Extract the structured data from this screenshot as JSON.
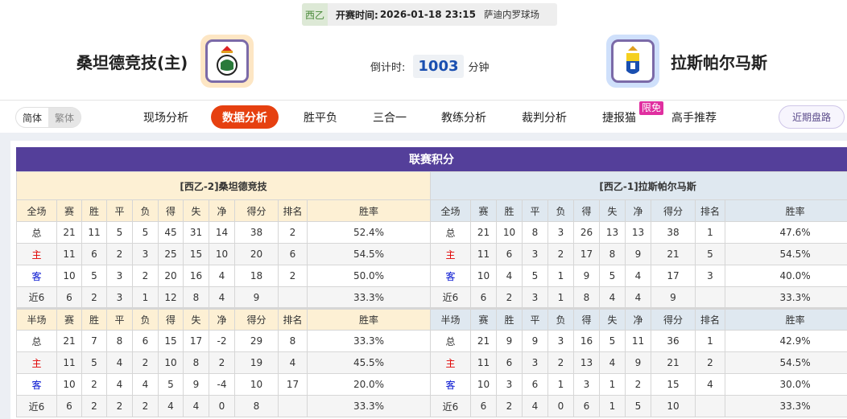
{
  "match": {
    "league": "西乙",
    "kickoff_label": "开赛时间:",
    "kickoff": "2026-01-18 23:15",
    "venue": "萨迪内罗球场"
  },
  "home_team": {
    "name": "桑坦德竞技(主)",
    "logo": "racing-santander-crest"
  },
  "away_team": {
    "name": "拉斯帕尔马斯",
    "logo": "las-palmas-crest"
  },
  "countdown": {
    "label": "倒计时:",
    "value": "1003",
    "unit": "分钟"
  },
  "lang": {
    "simplified": "简体",
    "traditional": "繁体"
  },
  "nav": {
    "tabs": [
      "现场分析",
      "数据分析",
      "胜平负",
      "三合一",
      "教练分析",
      "裁判分析",
      "捷报猫",
      "高手推荐"
    ],
    "active": "数据分析",
    "badge": "限免",
    "recent": "近期盘路"
  },
  "colors": {
    "accent": "#e64010",
    "title_bar": "#543f9a",
    "home_label": "#e00000",
    "away_label": "#0010d0"
  },
  "standings": {
    "title": "联赛积分",
    "home": {
      "team": "[西乙-2]桑坦德竞技",
      "full": {
        "header": [
          "全场",
          "赛",
          "胜",
          "平",
          "负",
          "得",
          "失",
          "净",
          "得分",
          "排名",
          "胜率"
        ],
        "rows": [
          [
            "总",
            "21",
            "11",
            "5",
            "5",
            "45",
            "31",
            "14",
            "38",
            "2",
            "52.4%"
          ],
          [
            "主",
            "11",
            "6",
            "2",
            "3",
            "25",
            "15",
            "10",
            "20",
            "6",
            "54.5%"
          ],
          [
            "客",
            "10",
            "5",
            "3",
            "2",
            "20",
            "16",
            "4",
            "18",
            "2",
            "50.0%"
          ],
          [
            "近6",
            "6",
            "2",
            "3",
            "1",
            "12",
            "8",
            "4",
            "9",
            "",
            "33.3%"
          ]
        ]
      },
      "half": {
        "header": [
          "半场",
          "赛",
          "胜",
          "平",
          "负",
          "得",
          "失",
          "净",
          "得分",
          "排名",
          "胜率"
        ],
        "rows": [
          [
            "总",
            "21",
            "7",
            "8",
            "6",
            "15",
            "17",
            "-2",
            "29",
            "8",
            "33.3%"
          ],
          [
            "主",
            "11",
            "5",
            "4",
            "2",
            "10",
            "8",
            "2",
            "19",
            "4",
            "45.5%"
          ],
          [
            "客",
            "10",
            "2",
            "4",
            "4",
            "5",
            "9",
            "-4",
            "10",
            "17",
            "20.0%"
          ],
          [
            "近6",
            "6",
            "2",
            "2",
            "2",
            "4",
            "4",
            "0",
            "8",
            "",
            "33.3%"
          ]
        ]
      }
    },
    "away": {
      "team": "[西乙-1]拉斯帕尔马斯",
      "full": {
        "header": [
          "全场",
          "赛",
          "胜",
          "平",
          "负",
          "得",
          "失",
          "净",
          "得分",
          "排名",
          "胜率"
        ],
        "rows": [
          [
            "总",
            "21",
            "10",
            "8",
            "3",
            "26",
            "13",
            "13",
            "38",
            "1",
            "47.6%"
          ],
          [
            "主",
            "11",
            "6",
            "3",
            "2",
            "17",
            "8",
            "9",
            "21",
            "5",
            "54.5%"
          ],
          [
            "客",
            "10",
            "4",
            "5",
            "1",
            "9",
            "5",
            "4",
            "17",
            "3",
            "40.0%"
          ],
          [
            "近6",
            "6",
            "2",
            "3",
            "1",
            "8",
            "4",
            "4",
            "9",
            "",
            "33.3%"
          ]
        ]
      },
      "half": {
        "header": [
          "半场",
          "赛",
          "胜",
          "平",
          "负",
          "得",
          "失",
          "净",
          "得分",
          "排名",
          "胜率"
        ],
        "rows": [
          [
            "总",
            "21",
            "9",
            "9",
            "3",
            "16",
            "5",
            "11",
            "36",
            "1",
            "42.9%"
          ],
          [
            "主",
            "11",
            "6",
            "3",
            "2",
            "13",
            "4",
            "9",
            "21",
            "2",
            "54.5%"
          ],
          [
            "客",
            "10",
            "3",
            "6",
            "1",
            "3",
            "1",
            "2",
            "15",
            "4",
            "30.0%"
          ],
          [
            "近6",
            "6",
            "2",
            "4",
            "0",
            "6",
            "1",
            "5",
            "10",
            "",
            "33.3%"
          ]
        ]
      }
    }
  }
}
